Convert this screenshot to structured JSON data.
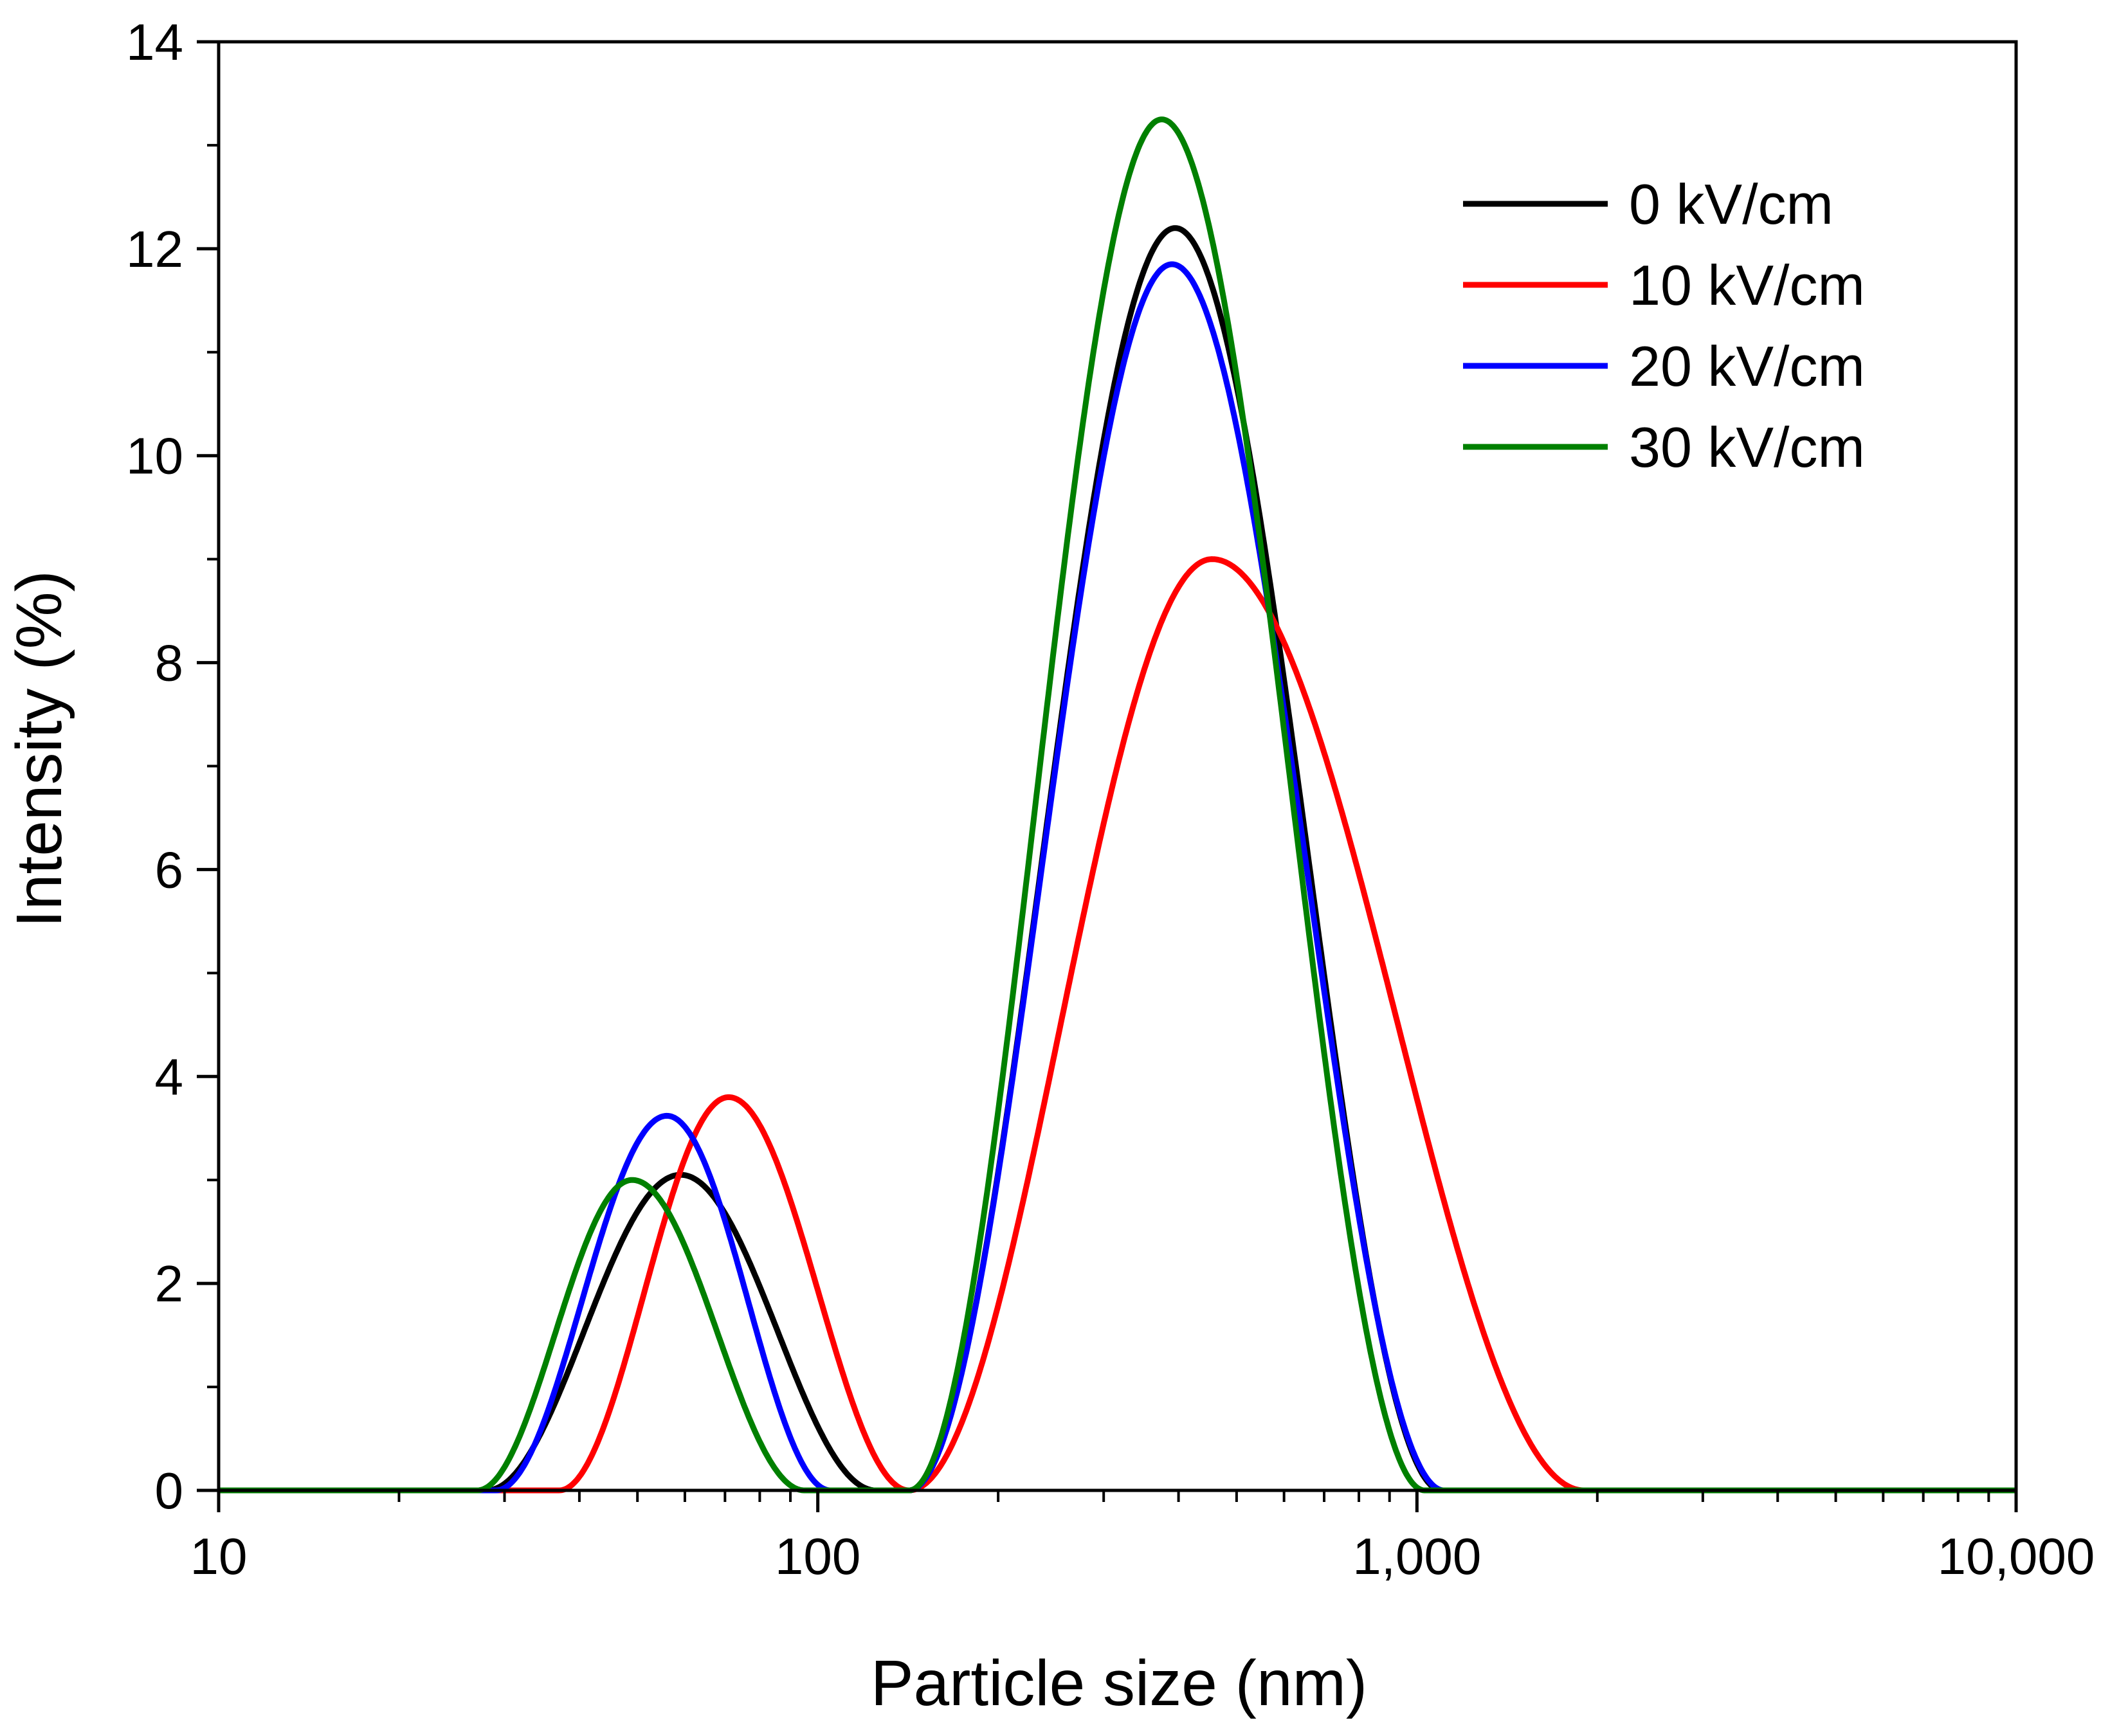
{
  "chart_data": {
    "type": "line",
    "title": "",
    "xlabel": "Particle size (nm)",
    "ylabel": "Intensity (%)",
    "xscale": "log",
    "xlim": [
      10,
      10000
    ],
    "ylim": [
      0,
      14
    ],
    "grid": false,
    "legend_position": "top-right",
    "xticks": [
      {
        "value": 10,
        "label": "10"
      },
      {
        "value": 100,
        "label": "100"
      },
      {
        "value": 1000,
        "label": "1,000"
      },
      {
        "value": 10000,
        "label": "10,000"
      }
    ],
    "yticks": [
      {
        "value": 0,
        "label": "0"
      },
      {
        "value": 2,
        "label": "2"
      },
      {
        "value": 4,
        "label": "4"
      },
      {
        "value": 6,
        "label": "6"
      },
      {
        "value": 8,
        "label": "8"
      },
      {
        "value": 10,
        "label": "10"
      },
      {
        "value": 12,
        "label": "12"
      },
      {
        "value": 14,
        "label": "14"
      }
    ],
    "series": [
      {
        "name": "0 kV/cm",
        "color": "#000000",
        "peaks": [
          {
            "center": 59,
            "height": 3.05,
            "range": [
              28,
              125
            ]
          },
          {
            "center": 395,
            "height": 12.2,
            "range": [
              142,
              1100
            ]
          }
        ]
      },
      {
        "name": "10 kV/cm",
        "color": "#ff0000",
        "peaks": [
          {
            "center": 71,
            "height": 3.8,
            "range": [
              37,
              142
            ]
          },
          {
            "center": 455,
            "height": 9.0,
            "range": [
              142,
              1900
            ]
          }
        ]
      },
      {
        "name": "20 kV/cm",
        "color": "#0000ff",
        "peaks": [
          {
            "center": 56,
            "height": 3.62,
            "range": [
              29,
              105
            ]
          },
          {
            "center": 390,
            "height": 11.85,
            "range": [
              142,
              1110
            ]
          }
        ]
      },
      {
        "name": "30 kV/cm",
        "color": "#008000",
        "peaks": [
          {
            "center": 49,
            "height": 3.0,
            "range": [
              27,
              95
            ]
          },
          {
            "center": 375,
            "height": 13.25,
            "range": [
              142,
              1030
            ]
          }
        ]
      }
    ]
  }
}
